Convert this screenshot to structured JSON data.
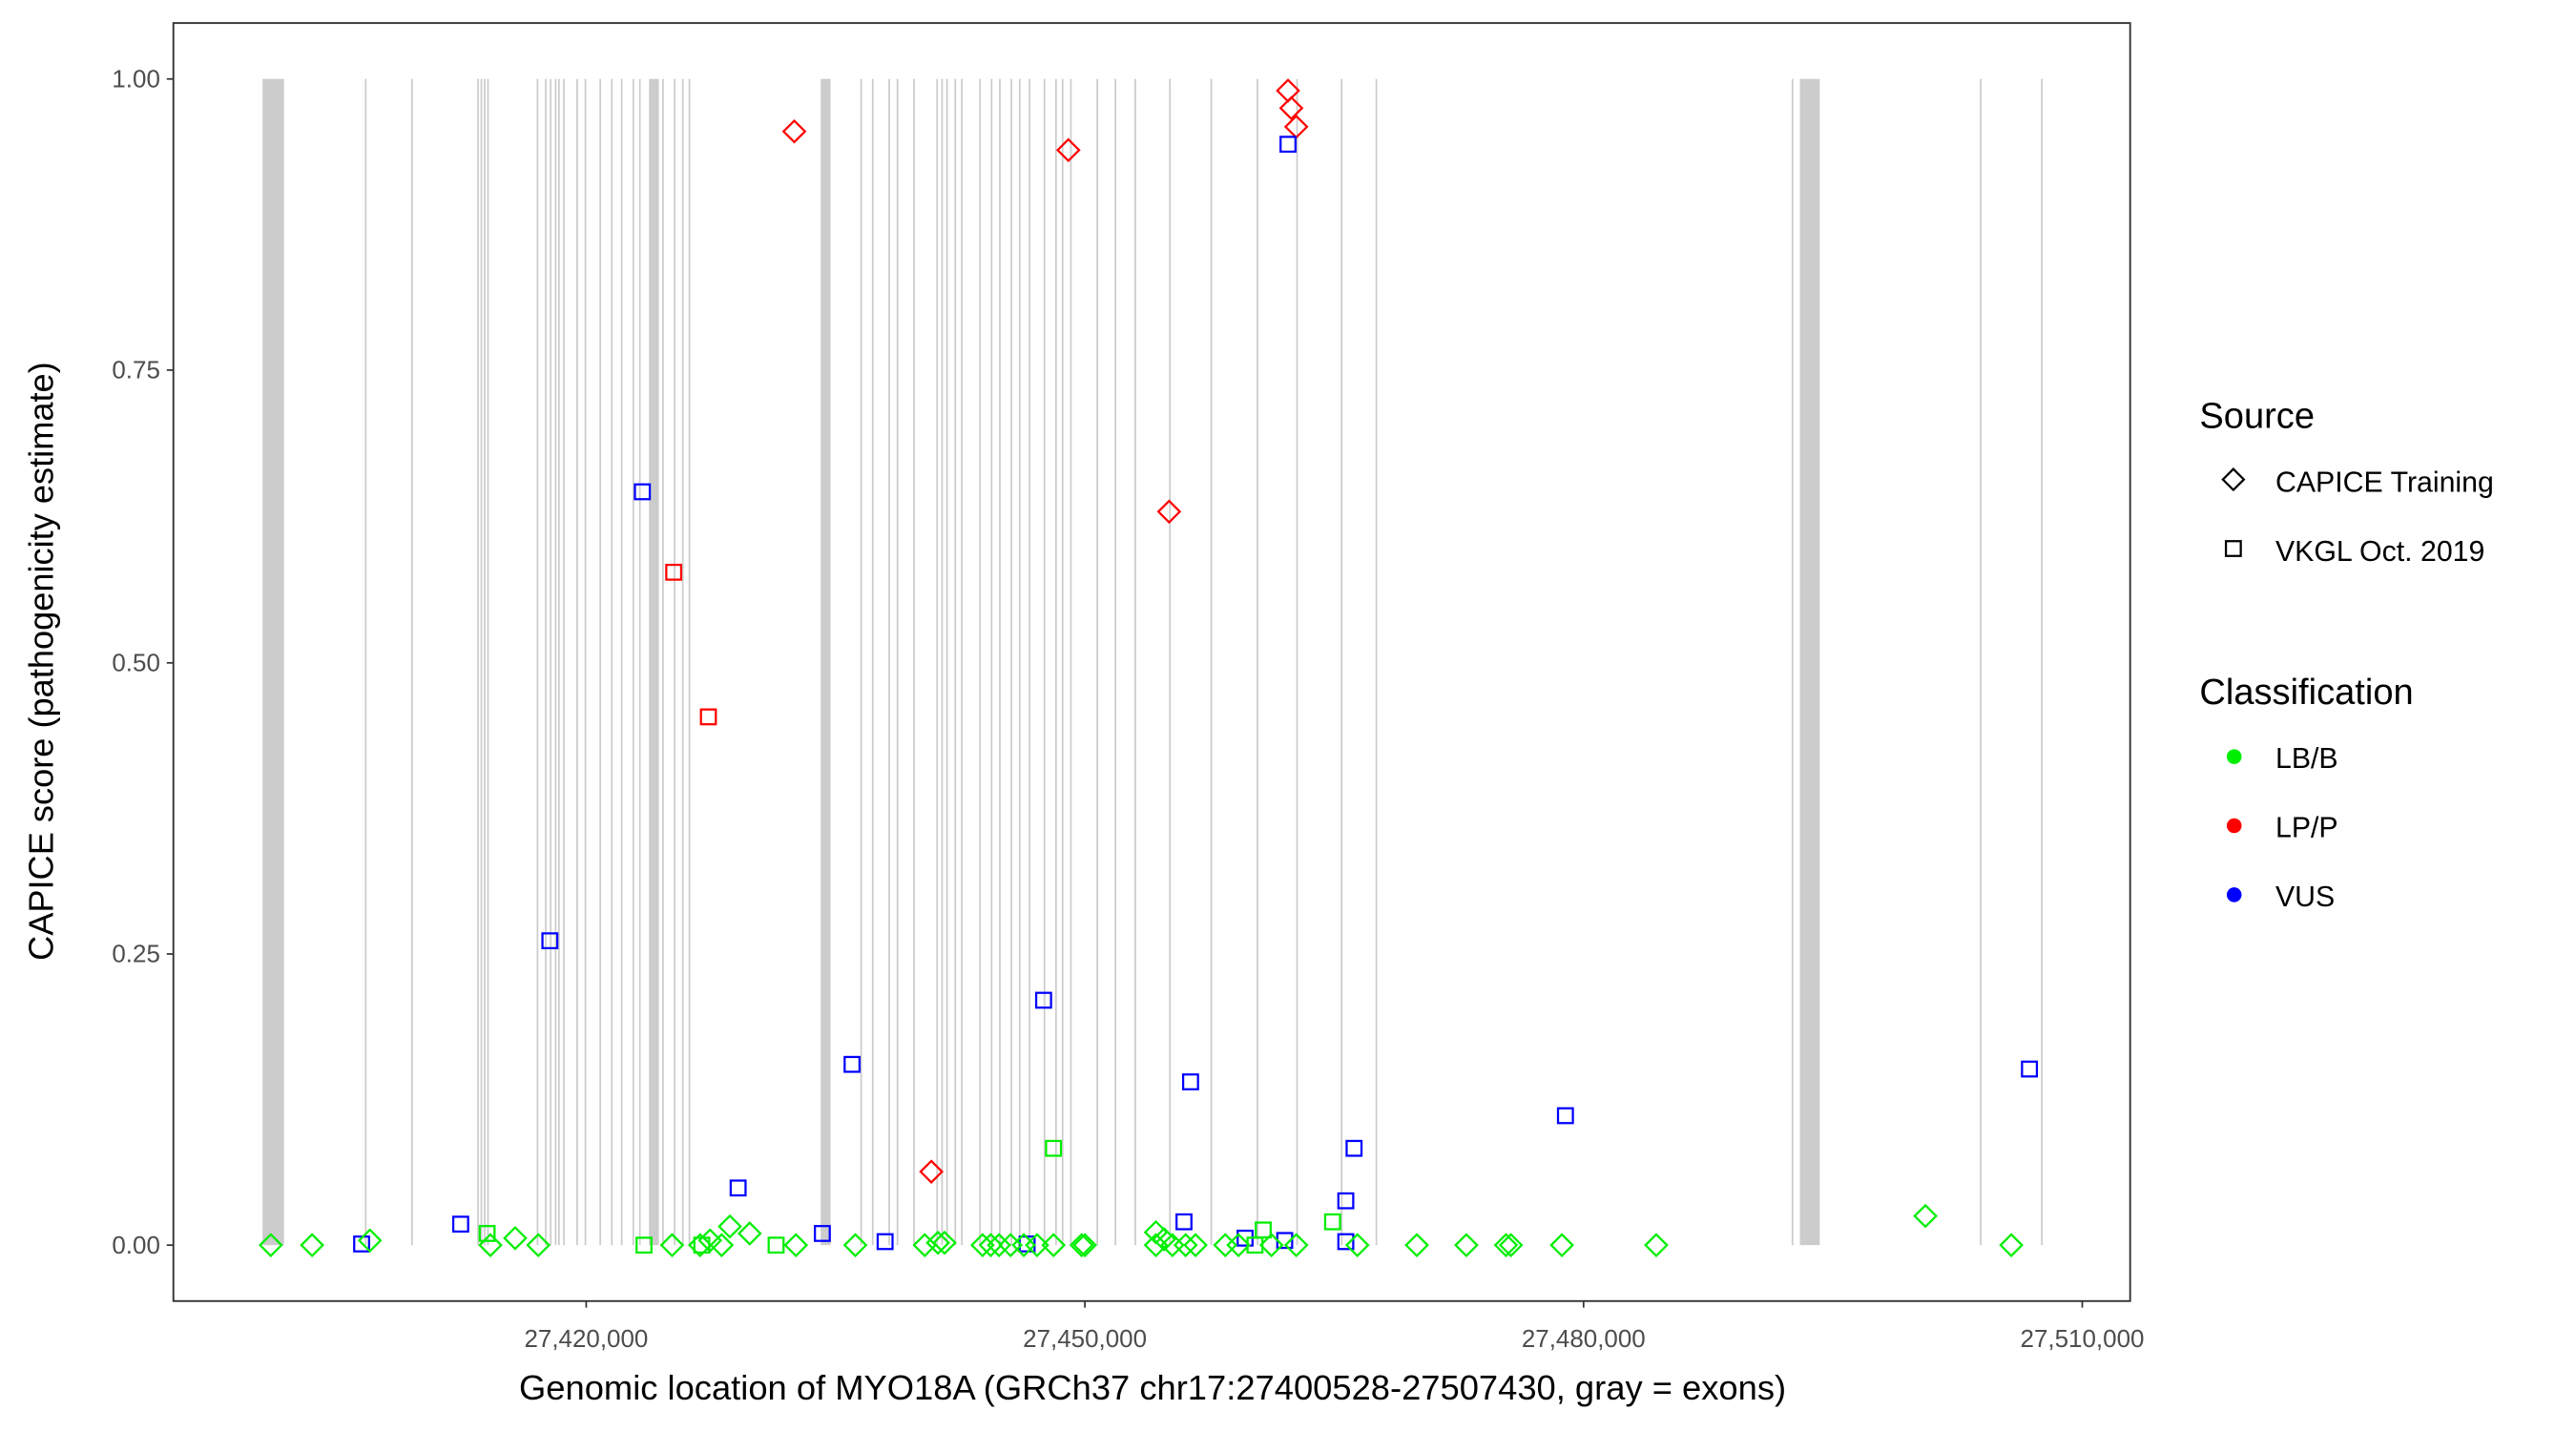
{
  "chart_data": {
    "type": "scatter",
    "xlabel": "Genomic location of MYO18A (GRCh37 chr17:27400528-27507430, gray = exons)",
    "ylabel": "CAPICE score (pathogenicity estimate)",
    "xlim": [
      27395300,
      27512800
    ],
    "ylim": [
      -0.047,
      1.047
    ],
    "grid": false,
    "x_ticks": [
      {
        "value": 27420000,
        "label": "27,420,000"
      },
      {
        "value": 27450000,
        "label": "27,450,000"
      },
      {
        "value": 27480000,
        "label": "27,480,000"
      },
      {
        "value": 27510000,
        "label": "27,510,000"
      }
    ],
    "y_ticks": [
      {
        "value": 0,
        "label": "0.00"
      },
      {
        "value": 0.25,
        "label": "0.25"
      },
      {
        "value": 0.5,
        "label": "0.50"
      },
      {
        "value": 0.75,
        "label": "0.75"
      },
      {
        "value": 1,
        "label": "1.00"
      }
    ],
    "colors": {
      "LB/B": "#00ee00",
      "LP/P": "#ff0000",
      "VUS": "#0000ff",
      "exon": "#cccccc"
    },
    "legend": {
      "placement": "right",
      "source_title": "Source",
      "source_items": [
        {
          "label": "CAPICE Training",
          "shape": "diamond"
        },
        {
          "label": "VKGL Oct. 2019",
          "shape": "square"
        }
      ],
      "class_title": "Classification",
      "class_items": [
        {
          "label": "LB/B",
          "key": "LB/B"
        },
        {
          "label": "LP/P",
          "key": "LP/P"
        },
        {
          "label": "VUS",
          "key": "VUS"
        }
      ]
    },
    "exons": [
      [
        27400529,
        27401821
      ],
      [
        27423775,
        27424371
      ],
      [
        27434106,
        27434702
      ],
      [
        27493015,
        27494207
      ],
      [
        27406688,
        27406788
      ],
      [
        27409470,
        27409570
      ],
      [
        27413444,
        27413544
      ],
      [
        27413642,
        27413742
      ],
      [
        27413841,
        27413941
      ],
      [
        27414040,
        27414140
      ],
      [
        27417020,
        27417120
      ],
      [
        27417516,
        27417616
      ],
      [
        27417815,
        27417915
      ],
      [
        27418113,
        27418213
      ],
      [
        27418311,
        27418411
      ],
      [
        27418609,
        27418709
      ],
      [
        27419404,
        27419504
      ],
      [
        27419901,
        27420001
      ],
      [
        27420795,
        27420895
      ],
      [
        27421490,
        27421590
      ],
      [
        27422086,
        27422186
      ],
      [
        27422782,
        27422882
      ],
      [
        27423179,
        27423279
      ],
      [
        27424570,
        27424670
      ],
      [
        27425265,
        27425365
      ],
      [
        27425762,
        27425862
      ],
      [
        27426159,
        27426259
      ],
      [
        27436490,
        27436590
      ],
      [
        27437186,
        27437286
      ],
      [
        27438179,
        27438279
      ],
      [
        27438676,
        27438776
      ],
      [
        27439669,
        27439769
      ],
      [
        27441060,
        27441160
      ],
      [
        27441358,
        27441458
      ],
      [
        27441656,
        27441756
      ],
      [
        27442153,
        27442253
      ],
      [
        27442550,
        27442650
      ],
      [
        27443643,
        27443743
      ],
      [
        27444338,
        27444438
      ],
      [
        27444835,
        27444935
      ],
      [
        27445530,
        27445630
      ],
      [
        27446027,
        27446127
      ],
      [
        27446623,
        27446723
      ],
      [
        27447517,
        27447617
      ],
      [
        27448213,
        27448313
      ],
      [
        27448610,
        27448710
      ],
      [
        27449107,
        27449207
      ],
      [
        27450696,
        27450796
      ],
      [
        27451789,
        27451889
      ],
      [
        27452981,
        27453081
      ],
      [
        27455067,
        27455167
      ],
      [
        27457551,
        27457651
      ],
      [
        27460332,
        27460432
      ],
      [
        27462716,
        27462816
      ],
      [
        27465398,
        27465498
      ],
      [
        27467485,
        27467585
      ],
      [
        27492519,
        27492619
      ],
      [
        27503844,
        27503944
      ],
      [
        27507519,
        27507619
      ]
    ],
    "series": [
      {
        "source": "CAPICE Training",
        "classification": "LP/P",
        "points": [
          [
            27432517,
            0.955
          ],
          [
            27449007,
            0.939
          ],
          [
            27462220,
            0.99
          ],
          [
            27462418,
            0.975
          ],
          [
            27462716,
            0.959
          ],
          [
            27455067,
            0.629
          ],
          [
            27440762,
            0.063
          ]
        ]
      },
      {
        "source": "VKGL Oct. 2019",
        "classification": "LP/P",
        "points": [
          [
            27425265,
            0.577
          ],
          [
            27427351,
            0.453
          ]
        ]
      },
      {
        "source": "VKGL Oct. 2019",
        "classification": "VUS",
        "points": [
          [
            27462220,
            0.944
          ],
          [
            27423378,
            0.646
          ],
          [
            27417815,
            0.261
          ],
          [
            27447517,
            0.21
          ],
          [
            27435994,
            0.155
          ],
          [
            27456358,
            0.14
          ],
          [
            27506823,
            0.151
          ],
          [
            27478909,
            0.111
          ],
          [
            27466193,
            0.083
          ],
          [
            27429139,
            0.049
          ],
          [
            27465696,
            0.038
          ],
          [
            27412450,
            0.018
          ],
          [
            27455961,
            0.02
          ],
          [
            27434206,
            0.01
          ],
          [
            27437981,
            0.003
          ],
          [
            27446524,
            0.001
          ],
          [
            27406490,
            0.001
          ],
          [
            27459637,
            0.006
          ],
          [
            27462021,
            0.004
          ],
          [
            27465696,
            0.003
          ]
        ]
      },
      {
        "source": "VKGL Oct. 2019",
        "classification": "LB/B",
        "points": [
          [
            27448113,
            0.083
          ],
          [
            27464902,
            0.02
          ],
          [
            27414040,
            0.01
          ],
          [
            27423477,
            0.0
          ],
          [
            27431424,
            0.0
          ],
          [
            27460729,
            0.013
          ],
          [
            27460233,
            0.0
          ],
          [
            27426954,
            0.0
          ]
        ]
      },
      {
        "source": "CAPICE Training",
        "classification": "LB/B",
        "points": [
          [
            27401026,
            0
          ],
          [
            27403510,
            0
          ],
          [
            27406986,
            0.004
          ],
          [
            27414238,
            0
          ],
          [
            27415728,
            0.006
          ],
          [
            27417119,
            0
          ],
          [
            27425166,
            0
          ],
          [
            27426854,
            0
          ],
          [
            27427451,
            0.004
          ],
          [
            27428146,
            0
          ],
          [
            27428643,
            0.016
          ],
          [
            27429835,
            0.01
          ],
          [
            27432616,
            0
          ],
          [
            27436192,
            0
          ],
          [
            27440365,
            0
          ],
          [
            27441160,
            0.002
          ],
          [
            27441557,
            0.002
          ],
          [
            27443842,
            0
          ],
          [
            27444338,
            0
          ],
          [
            27444835,
            0
          ],
          [
            27445530,
            0
          ],
          [
            27446325,
            0
          ],
          [
            27447120,
            0
          ],
          [
            27448113,
            0
          ],
          [
            27449802,
            0
          ],
          [
            27450001,
            0
          ],
          [
            27454272,
            0.011
          ],
          [
            27454769,
            0.005
          ],
          [
            27455266,
            0
          ],
          [
            27456060,
            0
          ],
          [
            27456656,
            0
          ],
          [
            27458445,
            0
          ],
          [
            27459239,
            0
          ],
          [
            27461226,
            0
          ],
          [
            27462716,
            0
          ],
          [
            27466392,
            0
          ],
          [
            27469968,
            0
          ],
          [
            27472948,
            0
          ],
          [
            27475332,
            0
          ],
          [
            27475630,
            0
          ],
          [
            27478697,
            0
          ],
          [
            27484372,
            0
          ],
          [
            27500565,
            0.025
          ],
          [
            27505730,
            0
          ],
          [
            27454272,
            0
          ]
        ]
      }
    ]
  }
}
